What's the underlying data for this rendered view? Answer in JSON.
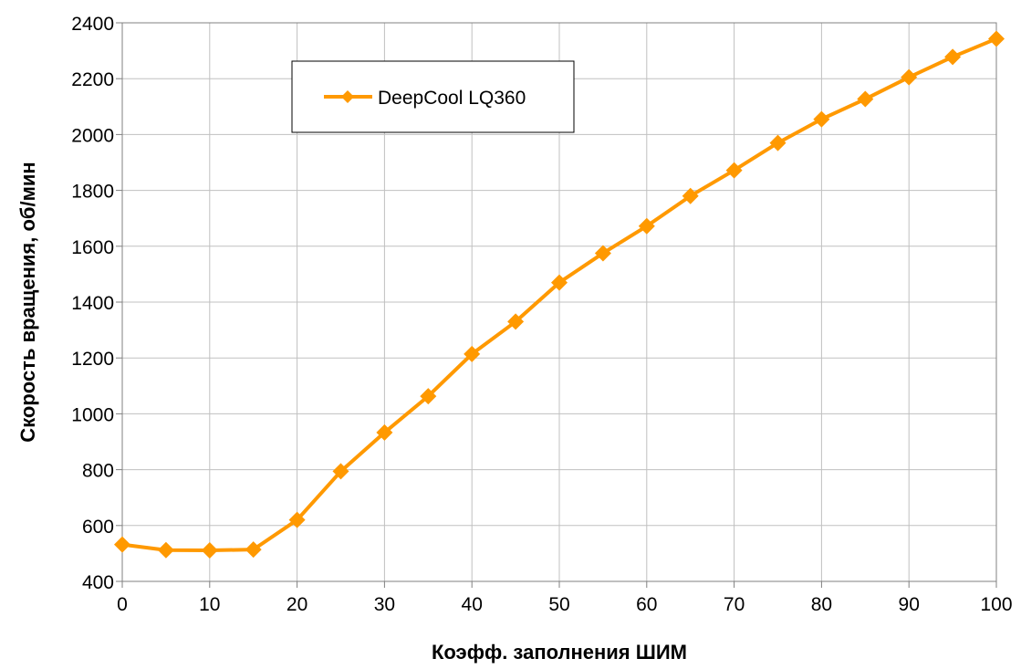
{
  "chart_data": {
    "type": "line",
    "xlabel": "Коэфф. заполнения ШИМ",
    "ylabel": "Скорость вращения, об/мин",
    "xlim": [
      0,
      100
    ],
    "ylim": [
      400,
      2400
    ],
    "x_ticks": [
      "0",
      "10",
      "20",
      "30",
      "40",
      "50",
      "60",
      "70",
      "80",
      "90",
      "100"
    ],
    "y_ticks": [
      "400",
      "600",
      "800",
      "1000",
      "1200",
      "1400",
      "1600",
      "1800",
      "2000",
      "2200",
      "2400"
    ],
    "grid": true,
    "legend_position": "top-left",
    "series": [
      {
        "name": "DeepCool LQ360",
        "color": "#FF9900",
        "marker": "diamond",
        "x": [
          0,
          5,
          10,
          15,
          20,
          25,
          30,
          35,
          40,
          45,
          50,
          55,
          60,
          65,
          70,
          75,
          80,
          85,
          90,
          95,
          100
        ],
        "y": [
          532,
          512,
          511,
          514,
          620,
          794,
          933,
          1063,
          1214,
          1330,
          1470,
          1575,
          1672,
          1780,
          1872,
          1970,
          2055,
          2127,
          2205,
          2278,
          2343
        ]
      }
    ]
  }
}
